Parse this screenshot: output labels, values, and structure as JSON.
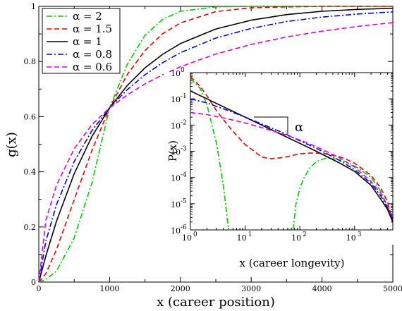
{
  "chart_data": [
    {
      "type": "line",
      "xlabel": "x (career position)",
      "ylabel": "g(x)",
      "xlim": [
        0,
        5000
      ],
      "ylim": [
        0,
        1
      ],
      "xticks": [
        "0",
        "1000",
        "2000",
        "3000",
        "4000",
        "5000"
      ],
      "yticks": [
        "0",
        "0.2",
        "0.4",
        "0.6",
        "0.8",
        "1"
      ],
      "grid": false,
      "legend_position": "top-left",
      "series": [
        {
          "name": "α = 2",
          "color": "#00cc00",
          "dash": "dash-dot",
          "x": [
            0,
            100,
            250,
            500,
            750,
            1000,
            1250,
            1500,
            1750,
            2000,
            2500,
            3000,
            3500,
            4000,
            4500,
            5000
          ],
          "y": [
            0,
            0.01,
            0.04,
            0.16,
            0.36,
            0.632,
            0.79,
            0.895,
            0.953,
            0.982,
            0.998,
            1.0,
            1.0,
            1.0,
            1.0,
            1.0
          ]
        },
        {
          "name": "α = 1.5",
          "color": "#ee0000",
          "dash": "dashed",
          "x": [
            0,
            100,
            250,
            500,
            750,
            1000,
            1250,
            1500,
            1750,
            2000,
            2500,
            3000,
            3500,
            4000,
            4500,
            5000
          ],
          "y": [
            0,
            0.031,
            0.118,
            0.299,
            0.477,
            0.632,
            0.753,
            0.84,
            0.901,
            0.94,
            0.981,
            0.995,
            0.998,
            1.0,
            1.0,
            1.0
          ]
        },
        {
          "name": "α = 1",
          "color": "#000000",
          "dash": "solid",
          "x": [
            0,
            100,
            250,
            500,
            750,
            1000,
            1250,
            1500,
            1750,
            2000,
            2500,
            3000,
            3500,
            4000,
            4500,
            5000
          ],
          "y": [
            0,
            0.095,
            0.221,
            0.393,
            0.528,
            0.632,
            0.713,
            0.777,
            0.826,
            0.865,
            0.918,
            0.95,
            0.97,
            0.982,
            0.989,
            0.993
          ]
        },
        {
          "name": "α = 0.8",
          "color": "#0000dd",
          "dash": "dash-dot",
          "x": [
            0,
            100,
            250,
            500,
            750,
            1000,
            1250,
            1500,
            1750,
            2000,
            2500,
            3000,
            3500,
            4000,
            4500,
            5000
          ],
          "y": [
            0,
            0.148,
            0.281,
            0.437,
            0.549,
            0.632,
            0.698,
            0.752,
            0.796,
            0.832,
            0.885,
            0.92,
            0.945,
            0.961,
            0.972,
            0.98
          ]
        },
        {
          "name": "α = 0.6",
          "color": "#dd00dd",
          "dash": "dashed",
          "x": [
            0,
            100,
            250,
            500,
            750,
            1000,
            1250,
            1500,
            1750,
            2000,
            2500,
            3000,
            3500,
            4000,
            4500,
            5000
          ],
          "y": [
            0,
            0.224,
            0.352,
            0.483,
            0.571,
            0.632,
            0.679,
            0.719,
            0.752,
            0.781,
            0.827,
            0.862,
            0.889,
            0.91,
            0.927,
            0.941
          ]
        }
      ]
    },
    {
      "type": "line",
      "xlabel": "x (career longevity)",
      "ylabel": "P(x)",
      "xscale": "log",
      "yscale": "log",
      "xlim": [
        1,
        5000
      ],
      "ylim": [
        1e-06,
        1
      ],
      "xticks": [
        "10^0",
        "10^1",
        "10^2",
        "10^3"
      ],
      "yticks": [
        "10^-6",
        "10^-5",
        "10^-4",
        "10^-3",
        "10^-2",
        "10^-1",
        "10^0"
      ],
      "annotation": "α",
      "series": [
        {
          "name": "α = 2",
          "color": "#00cc00",
          "dash": "dash-dot",
          "segments": [
            {
              "x": [
                1,
                1.5,
                2,
                3,
                4,
                5
              ],
              "y": [
                0.6,
                0.25,
                0.06,
                0.002,
                5e-05,
                1e-06
              ]
            },
            {
              "x": [
                75,
                85,
                100,
                120,
                150,
                200,
                300,
                500,
                800,
                1200,
                2000,
                3000,
                4000,
                5000
              ],
              "y": [
                1e-06,
                1e-05,
                4e-05,
                0.0001,
                0.00022,
                0.0004,
                0.00055,
                0.0005,
                0.00035,
                0.00022,
                0.0001,
                3e-05,
                8e-06,
                2e-06
              ]
            }
          ]
        },
        {
          "name": "α = 1.5",
          "color": "#ee0000",
          "dash": "dashed",
          "x": [
            1,
            1.5,
            2,
            3,
            5,
            7,
            10,
            15,
            20,
            30,
            50,
            70,
            100,
            150,
            200,
            300,
            500,
            700,
            1000,
            2000,
            3000,
            4000,
            5000
          ],
          "y": [
            0.7,
            0.3,
            0.13,
            0.035,
            0.009,
            0.004,
            0.0018,
            0.00095,
            0.0006,
            0.00052,
            0.00058,
            0.00068,
            0.0008,
            0.00085,
            0.00085,
            0.0008,
            0.00065,
            0.0005,
            0.00035,
            0.00012,
            4e-05,
            1.2e-05,
            2e-06
          ]
        },
        {
          "name": "α = 1",
          "color": "#000000",
          "dash": "solid",
          "x": [
            1,
            2,
            5,
            10,
            20,
            50,
            100,
            200,
            500,
            1000,
            2000,
            3000,
            4000,
            5000
          ],
          "y": [
            0.2,
            0.1,
            0.04,
            0.02,
            0.01,
            0.004,
            0.002,
            0.001,
            0.00038,
            0.00017,
            5e-05,
            1.5e-05,
            6e-06,
            2e-06
          ]
        },
        {
          "name": "α = 0.8",
          "color": "#0000dd",
          "dash": "dash-dot",
          "x": [
            1,
            2,
            5,
            10,
            20,
            50,
            100,
            200,
            500,
            1000,
            2000,
            3000,
            4000,
            5000
          ],
          "y": [
            0.1,
            0.07,
            0.035,
            0.02,
            0.011,
            0.005,
            0.0025,
            0.0013,
            0.00048,
            0.0002,
            6e-05,
            2e-05,
            7e-06,
            2.5e-06
          ]
        },
        {
          "name": "α = 0.6",
          "color": "#dd00dd",
          "dash": "dashed",
          "x": [
            1,
            2,
            5,
            10,
            20,
            50,
            100,
            200,
            500,
            1000,
            2000,
            3000,
            4000,
            5000
          ],
          "y": [
            0.03,
            0.025,
            0.017,
            0.012,
            0.008,
            0.0045,
            0.0027,
            0.0015,
            0.0006,
            0.00025,
            7e-05,
            2.5e-05,
            8e-06,
            3e-06
          ]
        }
      ]
    }
  ]
}
